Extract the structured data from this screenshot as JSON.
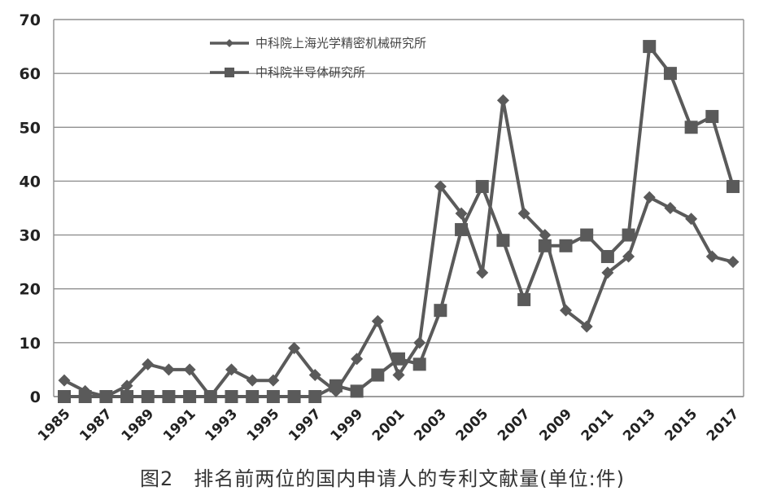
{
  "caption": "图2　排名前两位的国内申请人的专利文献量(单位:件)",
  "chart_data": {
    "type": "line",
    "title": "",
    "xlabel": "",
    "ylabel": "",
    "ylim": [
      0,
      70
    ],
    "yticks": [
      0,
      10,
      20,
      30,
      40,
      50,
      60,
      70
    ],
    "xlim": [
      1985,
      2017
    ],
    "xtick_labels": [
      "1985",
      "1987",
      "1989",
      "1991",
      "1993",
      "1995",
      "1997",
      "1999",
      "2001",
      "2003",
      "2005",
      "2007",
      "2009",
      "2011",
      "2013",
      "2015",
      "2017"
    ],
    "grid": true,
    "legend_position": "top-left",
    "x": [
      1985,
      1986,
      1987,
      1988,
      1989,
      1990,
      1991,
      1992,
      1993,
      1994,
      1995,
      1996,
      1997,
      1998,
      1999,
      2000,
      2001,
      2002,
      2003,
      2004,
      2005,
      2006,
      2007,
      2008,
      2009,
      2010,
      2011,
      2012,
      2013,
      2014,
      2015,
      2016,
      2017
    ],
    "series": [
      {
        "name": "中科院上海光学精密机械研究所",
        "marker": "diamond",
        "color": "#5a5a5a",
        "values": [
          3,
          1,
          0,
          2,
          6,
          5,
          5,
          0,
          5,
          3,
          3,
          9,
          4,
          1,
          7,
          14,
          4,
          10,
          39,
          34,
          23,
          55,
          34,
          30,
          16,
          13,
          23,
          26,
          37,
          35,
          33,
          26,
          25
        ]
      },
      {
        "name": "中科院半导体研究所",
        "marker": "square",
        "color": "#5a5a5a",
        "values": [
          0,
          0,
          0,
          0,
          0,
          0,
          0,
          0,
          0,
          0,
          0,
          0,
          0,
          2,
          1,
          4,
          7,
          6,
          16,
          31,
          39,
          29,
          18,
          28,
          28,
          30,
          26,
          30,
          65,
          60,
          50,
          52,
          39
        ]
      }
    ]
  }
}
